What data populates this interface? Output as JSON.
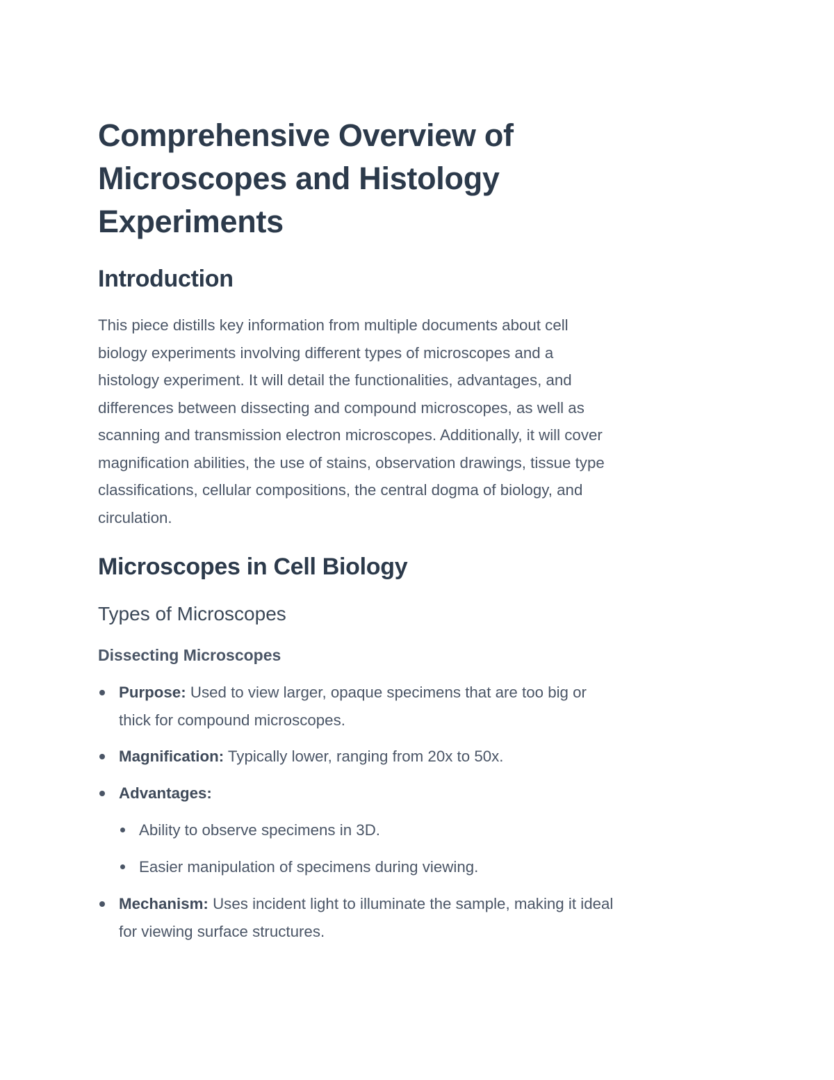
{
  "title_lines": [
    "Comprehensive Overview of",
    "Microscopes and Histology",
    "Experiments"
  ],
  "intro": {
    "heading": "Introduction",
    "lines": [
      "This piece distills key information from multiple documents about cell",
      "biology experiments involving different types of microscopes and a",
      "histology experiment. It will detail the functionalities, advantages, and",
      "differences between dissecting and compound microscopes, as well as",
      "scanning and transmission electron microscopes. Additionally, it will cover",
      "magnification abilities, the use of stains, observation drawings, tissue type",
      "classifications, cellular compositions, the central dogma of biology, and",
      "circulation."
    ]
  },
  "section": {
    "heading": "Microscopes in Cell Biology",
    "subheading": "Types of Microscopes",
    "subsubheading": "Dissecting Microscopes",
    "purpose": {
      "label": "Purpose:",
      "line1": " Used to view larger, opaque specimens that are too big or",
      "line2": "thick for compound microscopes."
    },
    "magnification": {
      "label": "Magnification:",
      "text": " Typically lower, ranging from 20x to 50x."
    },
    "advantages": {
      "label": "Advantages:",
      "items": [
        "Ability to observe specimens in 3D.",
        "Easier manipulation of specimens during viewing."
      ]
    },
    "mechanism": {
      "label": "Mechanism:",
      "line1": " Uses incident light to illuminate the sample, making it ideal",
      "line2": "for viewing surface structures."
    }
  }
}
